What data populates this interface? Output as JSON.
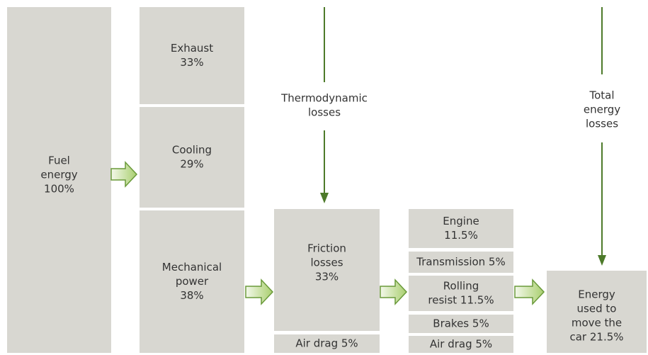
{
  "nodes": [
    {
      "lines": [
        "Fuel",
        "energy",
        "100%"
      ]
    },
    {
      "lines": [
        "Exhaust",
        "33%"
      ]
    },
    {
      "lines": [
        "Cooling",
        "29%"
      ]
    },
    {
      "lines": [
        "Mechanical",
        "power",
        "38%"
      ]
    },
    {
      "lines": [
        "Friction",
        "losses",
        "33%"
      ]
    },
    {
      "lines": [
        "Air drag 5%"
      ]
    },
    {
      "lines": [
        "Engine",
        "11.5%"
      ]
    },
    {
      "lines": [
        "Transmission 5%"
      ]
    },
    {
      "lines": [
        "Rolling",
        "resist 11.5%"
      ]
    },
    {
      "lines": [
        "Brakes 5%"
      ]
    },
    {
      "lines": [
        "Air drag 5%"
      ]
    },
    {
      "lines": [
        "Energy",
        "used to",
        "move the",
        "car 21.5%"
      ]
    }
  ],
  "labels": [
    {
      "lines": [
        "Thermodynamic",
        "losses"
      ]
    },
    {
      "lines": [
        "Total",
        "energy",
        "losses"
      ]
    }
  ]
}
